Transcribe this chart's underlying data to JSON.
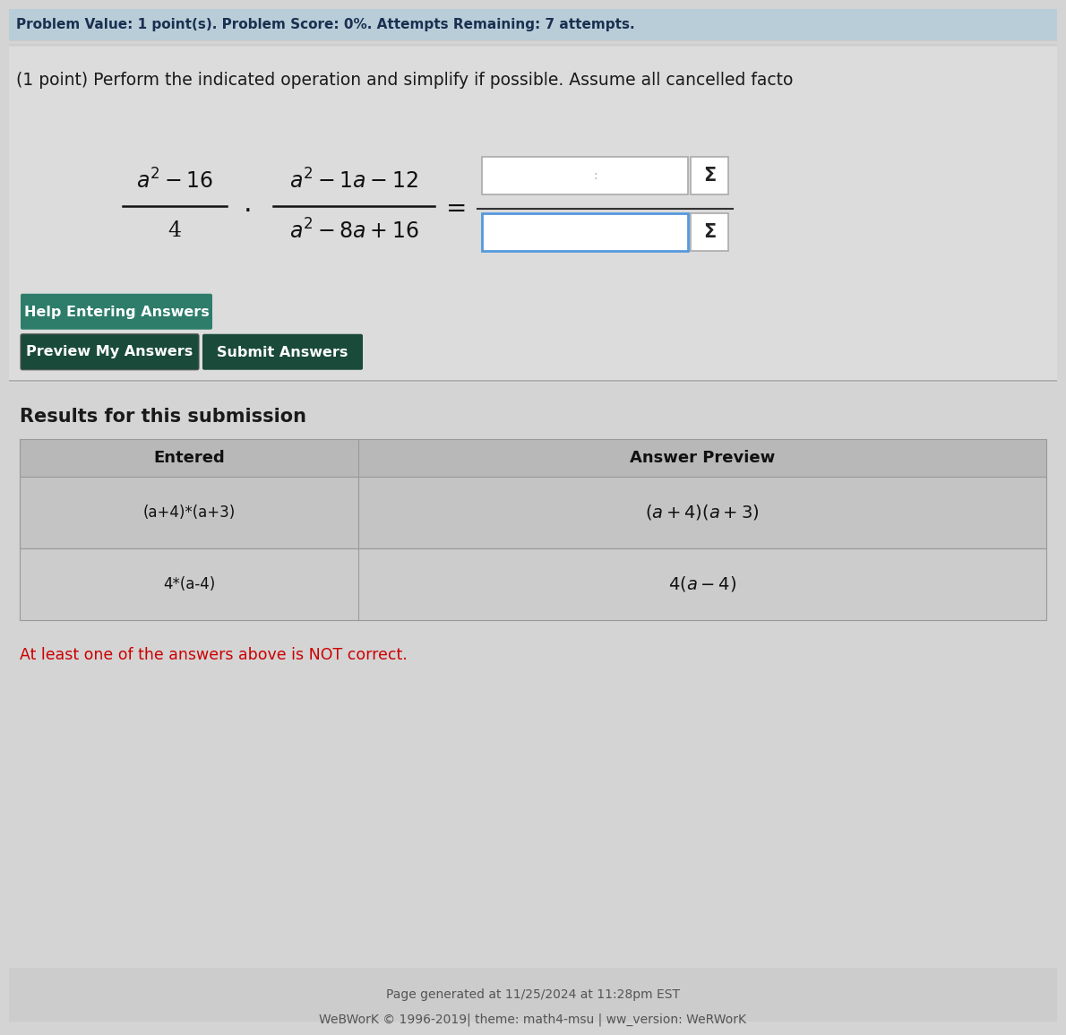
{
  "bg_header": "#b8cdd8",
  "bg_content": "#d4d4d4",
  "bg_formula_area": "#dcdcdc",
  "header_text": "Problem Value: 1 point(s). Problem Score: 0%. Attempts Remaining: 7 attempts.",
  "header_color": "#1a3050",
  "problem_text": "(1 point) Perform the indicated operation and simplify if possible. Assume all cancelled facto",
  "problem_color": "#1a1a1a",
  "sigma": "Σ",
  "help_btn_text": "Help Entering Answers",
  "preview_btn_text": "Preview My Answers",
  "submit_btn_text": "Submit Answers",
  "btn_color_help": "#2e7d6b",
  "btn_color_preview": "#1a4a3a",
  "btn_color_submit": "#1a4a3a",
  "btn_text_color": "#ffffff",
  "separator_color": "#999999",
  "results_title": "Results for this submission",
  "table_header_entered": "Entered",
  "table_header_preview": "Answer Preview",
  "table_row1_entered": "(a+4)*(a+3)",
  "table_row1_preview": "(a + 4)(a + 3)",
  "table_row2_entered": "4*(a-4)",
  "table_row2_preview": "4(a – 4)",
  "table_bg_header": "#b8b8b8",
  "table_bg_row": "#c4c4c4",
  "table_bg_row_alt": "#cccccc",
  "error_text": "At least one of the answers above is NOT correct.",
  "error_color": "#cc0000",
  "footer_line1": "Page generated at 11/25/2024 at 11:28pm EST",
  "footer_line2": "WeBWorK © 1996-2019| theme: math4-msu | ww_version: WeRWorK",
  "footer_color": "#555555",
  "input_border_normal": "#aaaaaa",
  "input_border_active": "#5599dd",
  "text_color": "#222222"
}
